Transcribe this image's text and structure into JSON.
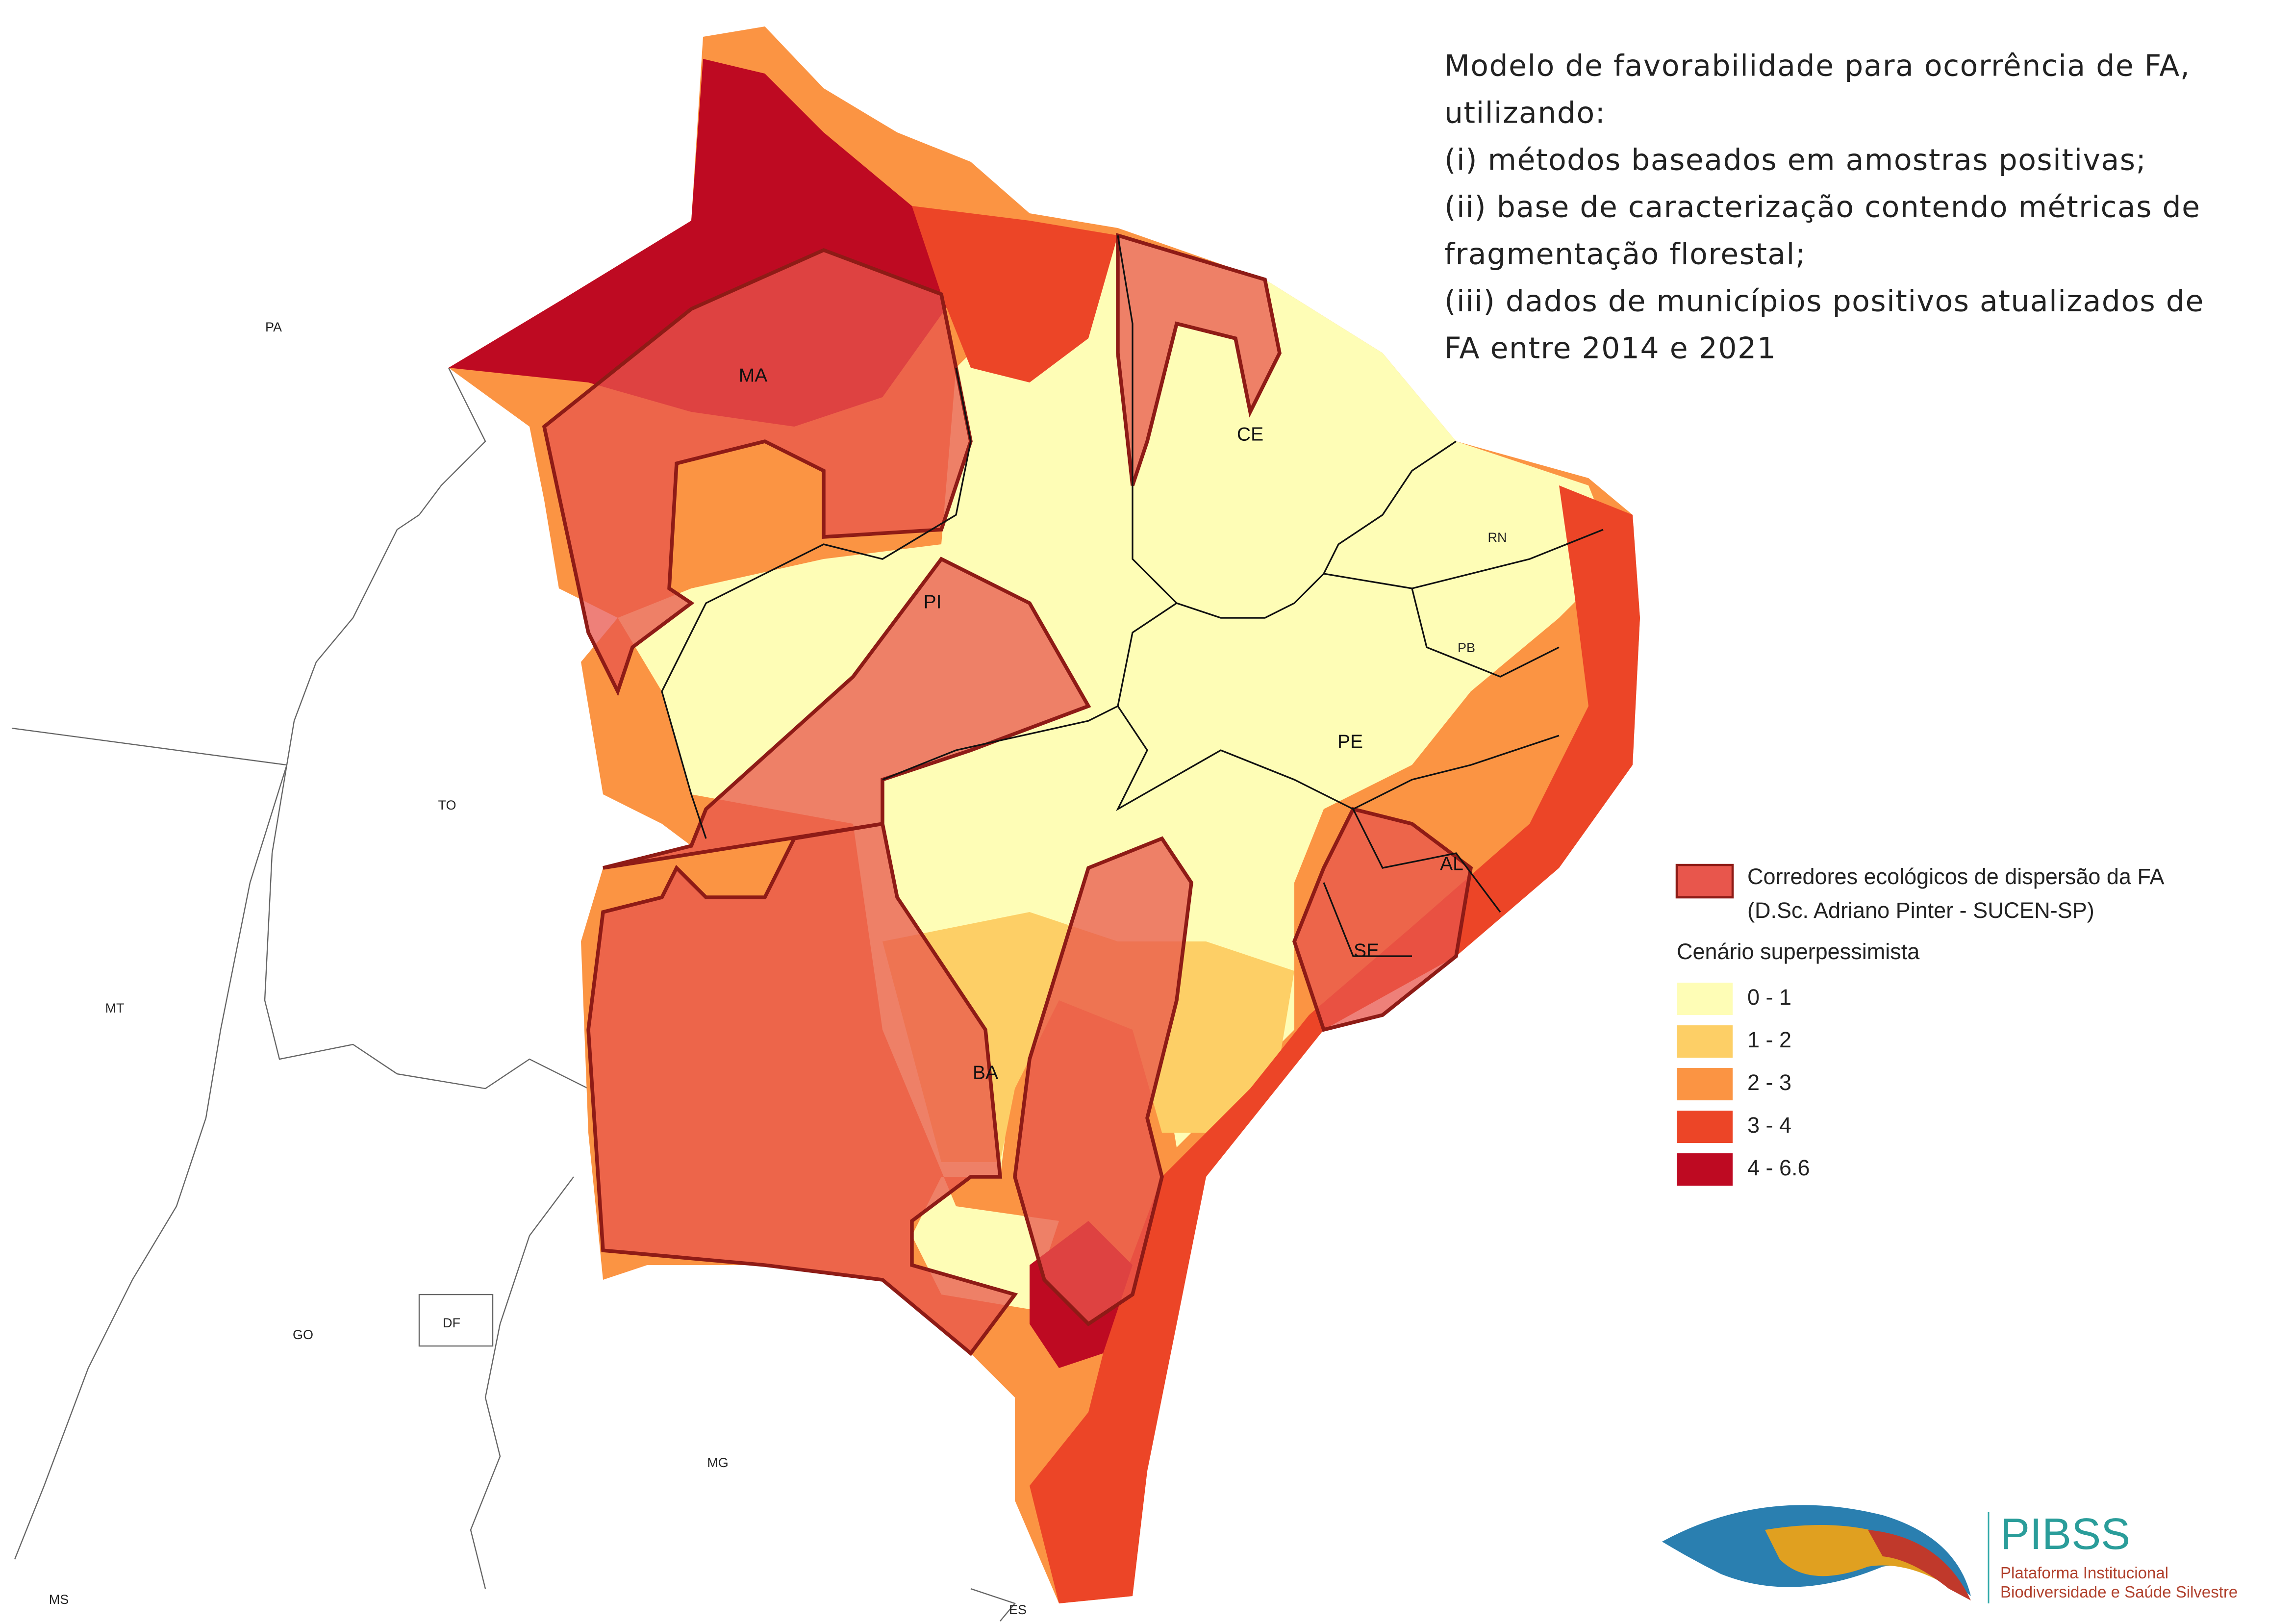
{
  "title_lines": [
    "Modelo de favorabilidade para ocorrência de FA,",
    "utilizando:",
    "(i) métodos baseados em amostras positivas;",
    "(ii) base de caracterização contendo métricas de",
    "fragmentação florestal;",
    "(iii) dados de municípios positivos atualizados de",
    "FA entre 2014 e 2021"
  ],
  "states": {
    "PA": "PA",
    "TO": "TO",
    "MT": "MT",
    "GO": "GO",
    "DF": "DF",
    "MG": "MG",
    "MS": "MS",
    "ES": "ES",
    "MA": "MA",
    "PI": "PI",
    "CE": "CE",
    "RN": "RN",
    "PB": "PB",
    "PE": "PE",
    "AL": "AL",
    "SE": "SE",
    "BA": "BA"
  },
  "legend": {
    "corridor_label": "Corredores ecológicos de dispersão da FA",
    "corridor_source": "(D.Sc. Adriano Pinter - SUCEN-SP)",
    "corridor_color": "#e8564c",
    "scenario_title": "Cenário superpessimista",
    "classes": [
      {
        "label": "0 - 1",
        "color": "#fefdb6"
      },
      {
        "label": "1 - 2",
        "color": "#fdcf66"
      },
      {
        "label": "2 - 3",
        "color": "#fb9443"
      },
      {
        "label": "3 - 4",
        "color": "#ec4527"
      },
      {
        "label": "4 - 6.6",
        "color": "#be0a22"
      }
    ]
  },
  "logo": {
    "name": "PIBSS",
    "line1": "Plataforma Institucional",
    "line2": "Biodiversidade e Saúde Silvestre"
  }
}
